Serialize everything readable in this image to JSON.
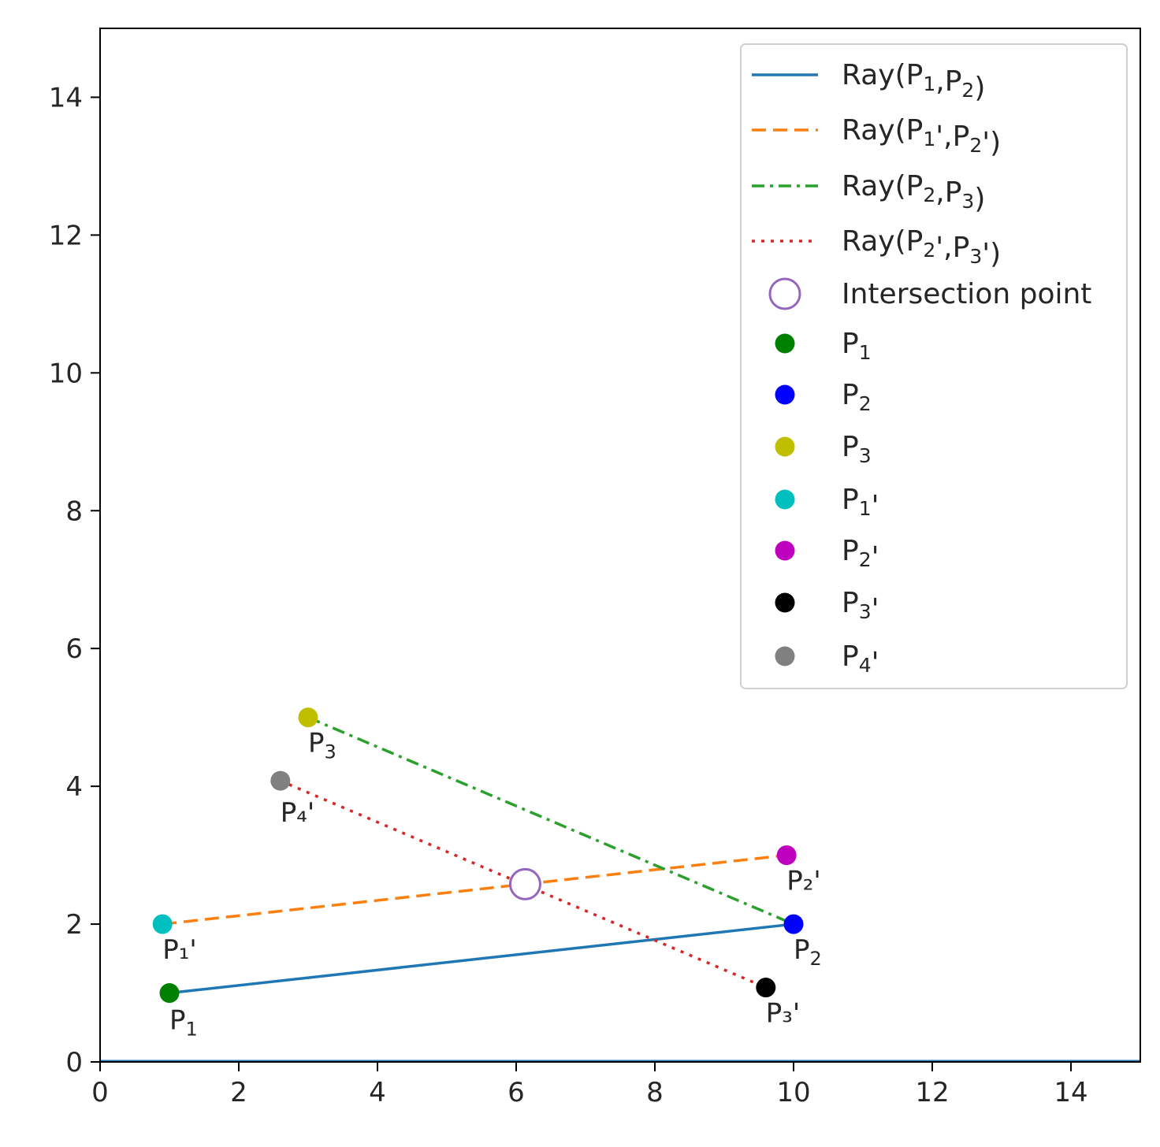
{
  "chart_data": {
    "type": "line",
    "title": "",
    "xlabel": "",
    "ylabel": "",
    "xlim": [
      0,
      15
    ],
    "ylim": [
      0,
      15
    ],
    "xticks": [
      0,
      2,
      4,
      6,
      8,
      10,
      12,
      14
    ],
    "yticks": [
      0,
      2,
      4,
      6,
      8,
      10,
      12,
      14
    ],
    "grid": false,
    "legend_position": "top-right",
    "series": [
      {
        "name": "Ray(P₁,P₂)",
        "kind": "line",
        "style": "solid",
        "color": "#1f77b4",
        "points": [
          [
            1,
            1
          ],
          [
            10,
            2
          ]
        ]
      },
      {
        "name": "Ray(P₁',P₂')",
        "kind": "line",
        "style": "dashed",
        "color": "#ff7f0e",
        "points": [
          [
            0.9,
            2
          ],
          [
            9.9,
            3
          ]
        ]
      },
      {
        "name": "Ray(P₂,P₃)",
        "kind": "line",
        "style": "dashdot",
        "color": "#2ca02c",
        "points": [
          [
            3,
            5
          ],
          [
            10,
            2
          ]
        ]
      },
      {
        "name": "Ray(P₂',P₃')",
        "kind": "line",
        "style": "dotted",
        "color": "#d62728",
        "points": [
          [
            2.6,
            4.08
          ],
          [
            9.6,
            1.08
          ]
        ]
      },
      {
        "name": "Intersection point",
        "kind": "marker",
        "hollow": true,
        "color": "#9467bd",
        "points": [
          [
            6.13,
            2.58
          ]
        ]
      },
      {
        "name": "P₁",
        "kind": "marker",
        "color": "#008000",
        "points": [
          [
            1,
            1
          ]
        ],
        "label": "P₁"
      },
      {
        "name": "P₂",
        "kind": "marker",
        "color": "#0000ff",
        "points": [
          [
            10,
            2
          ]
        ],
        "label": "P₂"
      },
      {
        "name": "P₃",
        "kind": "marker",
        "color": "#bfbf00",
        "points": [
          [
            3,
            5
          ]
        ],
        "label": "P₃"
      },
      {
        "name": "P₁'",
        "kind": "marker",
        "color": "#00bfbf",
        "points": [
          [
            0.9,
            2
          ]
        ],
        "label": "P₁'"
      },
      {
        "name": "P₂'",
        "kind": "marker",
        "color": "#bf00bf",
        "points": [
          [
            9.9,
            3
          ]
        ],
        "label": "P₂'"
      },
      {
        "name": "P₃'",
        "kind": "marker",
        "color": "#000000",
        "points": [
          [
            9.6,
            1.08
          ]
        ],
        "label": "P₃'"
      },
      {
        "name": "P₄'",
        "kind": "marker",
        "color": "#808080",
        "points": [
          [
            2.6,
            4.08
          ]
        ],
        "label": "P₄'"
      }
    ],
    "baseline": {
      "y": 0,
      "color": "#1f77b4"
    }
  }
}
